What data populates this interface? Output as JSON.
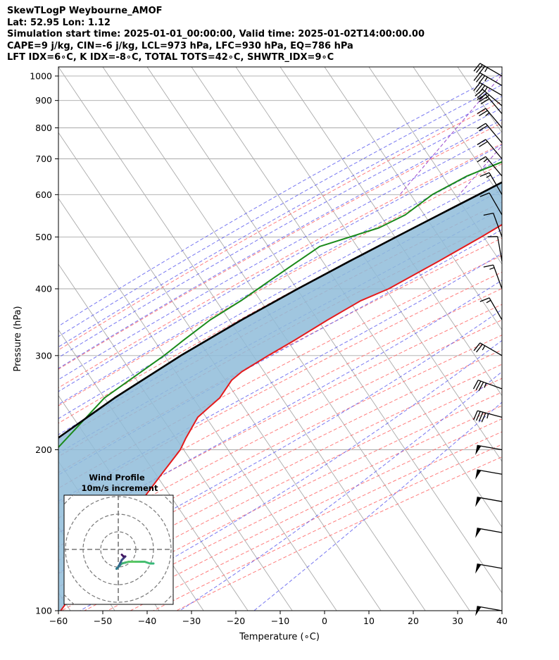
{
  "header": {
    "line1": "SkewTLogP Weybourne_AMOF",
    "line2": "Lat: 52.95   Lon: 1.12",
    "line3": "Simulation start time: 2025-01-01_00:00:00, Valid time: 2025-01-02T14:00:00.00",
    "line4": "CAPE=9 j/kg, CIN=-6 j/kg, LCL=973 hPa, LFC=930 hPa, EQ=786 hPa",
    "line5": "LFT IDX=6∘C, K IDX=-8∘C, TOTAL TOTS=42∘C, SHWTR_IDX=9∘C"
  },
  "chart_data": {
    "type": "line",
    "subtype": "skew-t log-p",
    "xlabel": "Temperature (∘C)",
    "ylabel": "Pressure (hPa)",
    "xlim": [
      -60,
      40
    ],
    "ylim": [
      1040,
      100
    ],
    "x_ticks": [
      "−60",
      "−50",
      "−40",
      "−30",
      "−20",
      "−10",
      "0",
      "10",
      "20",
      "30",
      "40"
    ],
    "y_ticks": [
      "100",
      "200",
      "300",
      "400",
      "500",
      "600",
      "700",
      "800",
      "900",
      "1000"
    ],
    "grid": true,
    "colors": {
      "temperature": "#e41a1c",
      "dewpoint": "#1a8a1a",
      "parcel": "#000000",
      "cape_fill": "#8fbcd9",
      "dry_adiabat": "#ff6666",
      "moist_adiabat": "#5555ee",
      "mixing_ratio": "#9944cc",
      "isotherm": "#aaaaaa"
    },
    "series": [
      {
        "key": "temperature",
        "p": [
          1040,
          1000,
          950,
          900,
          850,
          800,
          750,
          700,
          650,
          600,
          550,
          500,
          450,
          400,
          380,
          350,
          320,
          300,
          280,
          270,
          250,
          240,
          230,
          210,
          200,
          180,
          160,
          140,
          120,
          100
        ],
        "t": [
          2.5,
          2.0,
          1.0,
          -0.5,
          1.0,
          -0.5,
          -2.5,
          -5.0,
          -8.5,
          -12.0,
          -16.5,
          -21.5,
          -27.5,
          -34.5,
          -39.0,
          -43.5,
          -48.0,
          -51.5,
          -55.0,
          -56.0,
          -56.0,
          -57.0,
          -58.0,
          -57.5,
          -57.0,
          -57.5,
          -58.0,
          -58.5,
          -59.0,
          -59.5
        ]
      },
      {
        "key": "dewpoint",
        "p": [
          1040,
          1000,
          970,
          950,
          920,
          900,
          880,
          850,
          800,
          750,
          700,
          650,
          600,
          550,
          520,
          480,
          420,
          380,
          350,
          320,
          300,
          250,
          200,
          180,
          160,
          140,
          100
        ],
        "t": [
          1.5,
          1.0,
          0.5,
          -1.0,
          -3.0,
          -5.5,
          -8.0,
          -14.0,
          -20.0,
          -22.5,
          -27.0,
          -34.0,
          -39.0,
          -42.0,
          -46.0,
          -56.5,
          -62.0,
          -66.0,
          -70.0,
          -73.0,
          -75.0,
          -82.0,
          -85.0,
          -85.5,
          -85.0,
          -82.0,
          -69.0
        ]
      },
      {
        "key": "parcel",
        "p": [
          1030,
          1000,
          973,
          930,
          900,
          850,
          800,
          750,
          700,
          650,
          600,
          550,
          500,
          450,
          400,
          350,
          300,
          250,
          200,
          150,
          100
        ],
        "t": [
          4.6,
          1.5,
          -0.9,
          -2.9,
          -4.5,
          -7.4,
          -10.7,
          -14.4,
          -18.6,
          -23.4,
          -28.6,
          -34.4,
          -40.7,
          -47.6,
          -55.0,
          -62.9,
          -71.2,
          -79.7,
          -88.3,
          -96.8,
          -105.0
        ]
      }
    ],
    "cape_shading": {
      "between": [
        "temperature",
        "parcel"
      ],
      "p_range": [
        720,
        100
      ]
    },
    "wind_barbs": {
      "p": [
        1000,
        960,
        920,
        880,
        850,
        800,
        750,
        700,
        650,
        600,
        550,
        500,
        450,
        400,
        350,
        300,
        260,
        230,
        200,
        180,
        160,
        140,
        120,
        100
      ],
      "speed_kt": [
        35,
        35,
        35,
        35,
        30,
        25,
        20,
        20,
        15,
        15,
        10,
        10,
        10,
        15,
        15,
        25,
        35,
        45,
        50,
        50,
        50,
        50,
        50,
        50
      ],
      "direction_deg": [
        300,
        300,
        300,
        310,
        320,
        320,
        320,
        320,
        320,
        330,
        330,
        340,
        350,
        340,
        330,
        300,
        290,
        285,
        280,
        280,
        280,
        280,
        280,
        280
      ]
    },
    "hodograph": {
      "title": "Wind Profile",
      "subtitle": "10m/s increment",
      "ring_increment_ms": 10,
      "u": [
        20,
        18,
        15,
        12,
        9,
        6,
        4,
        2,
        1,
        0,
        -1,
        0,
        1,
        2,
        3,
        4,
        3,
        2
      ],
      "v": [
        -8,
        -8,
        -7,
        -7,
        -7,
        -7,
        -7.5,
        -8,
        -9,
        -10,
        -11,
        -10,
        -8,
        -6,
        -5,
        -4,
        -4,
        -3
      ]
    }
  }
}
